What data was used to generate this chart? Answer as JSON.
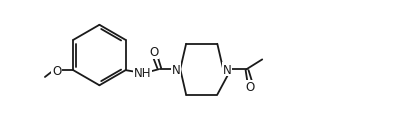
{
  "bg_color": "#ffffff",
  "line_color": "#1a1a1a",
  "lw": 1.3,
  "fs": 8.5,
  "fig_w": 3.93,
  "fig_h": 1.14,
  "dpi": 100,
  "atoms": {
    "O_methoxy": "O",
    "methoxy_label": "O",
    "NH": "NH",
    "N1": "N",
    "N2": "N",
    "O_carbonyl1": "O",
    "O_carbonyl2": "O"
  }
}
